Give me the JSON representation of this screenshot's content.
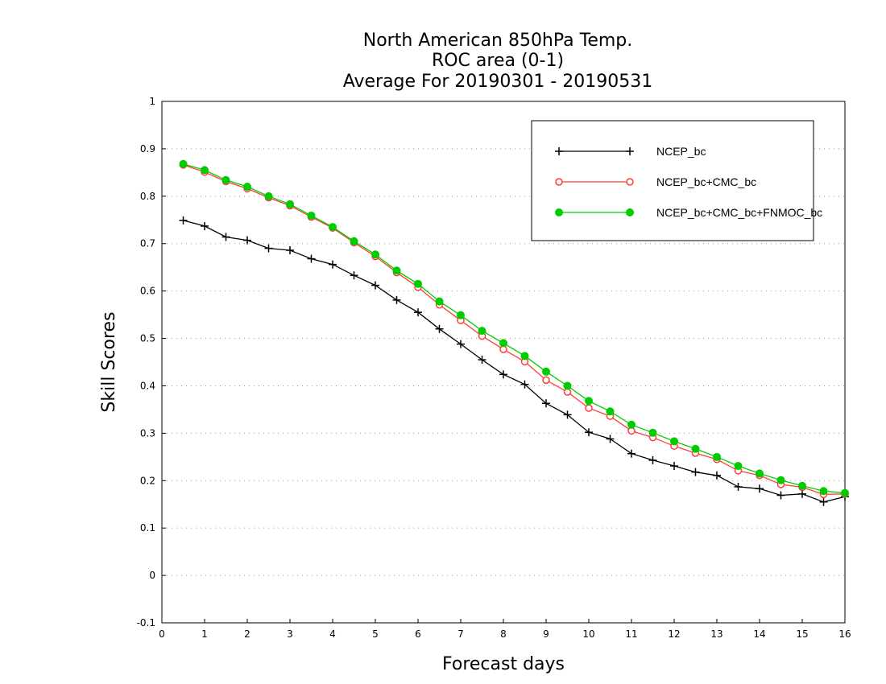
{
  "chart_data": {
    "type": "line",
    "title": [
      "North American 850hPa Temp.",
      "ROC area (0-1)",
      "Average For 20190301 - 20190531"
    ],
    "xlabel": "Forecast days",
    "ylabel": "Skill Scores",
    "xlim": [
      0,
      16
    ],
    "ylim": [
      -0.1,
      1
    ],
    "xticks": [
      0,
      1,
      2,
      3,
      4,
      5,
      6,
      7,
      8,
      9,
      10,
      11,
      12,
      13,
      14,
      15,
      16
    ],
    "yticks": [
      -0.1,
      0,
      0.1,
      0.2,
      0.3,
      0.4,
      0.5,
      0.6,
      0.7,
      0.8,
      0.9,
      1
    ],
    "ytick_labels": [
      "-0.1",
      "0",
      "0.1",
      "0.2",
      "0.3",
      "0.4",
      "0.5",
      "0.6",
      "0.7",
      "0.8",
      "0.9",
      "1"
    ],
    "grid": "horizontal-dotted",
    "legend_position": "top-right",
    "x": [
      0.5,
      1,
      1.5,
      2,
      2.5,
      3,
      3.5,
      4,
      4.5,
      5,
      5.5,
      6,
      6.5,
      7,
      7.5,
      8,
      8.5,
      9,
      9.5,
      10,
      10.5,
      11,
      11.5,
      12,
      12.5,
      13,
      13.5,
      14,
      14.5,
      15,
      15.5,
      16
    ],
    "series": [
      {
        "name": "NCEP_bc",
        "color": "#000000",
        "marker": "plus",
        "values": [
          0.749,
          0.737,
          0.714,
          0.707,
          0.69,
          0.686,
          0.668,
          0.656,
          0.633,
          0.612,
          0.581,
          0.555,
          0.52,
          0.488,
          0.455,
          0.424,
          0.403,
          0.363,
          0.339,
          0.302,
          0.288,
          0.257,
          0.243,
          0.231,
          0.218,
          0.211,
          0.187,
          0.183,
          0.169,
          0.172,
          0.155,
          0.166
        ]
      },
      {
        "name": "NCEP_bc+CMC_bc",
        "color": "#ff3b3b",
        "marker": "open-circle",
        "values": [
          0.866,
          0.851,
          0.831,
          0.816,
          0.797,
          0.78,
          0.756,
          0.733,
          0.702,
          0.673,
          0.639,
          0.608,
          0.571,
          0.538,
          0.505,
          0.477,
          0.451,
          0.412,
          0.387,
          0.353,
          0.336,
          0.305,
          0.291,
          0.273,
          0.258,
          0.245,
          0.221,
          0.211,
          0.192,
          0.186,
          0.171,
          0.172
        ]
      },
      {
        "name": "NCEP_bc+CMC_bc+FNMOC_bc",
        "color": "#00cc00",
        "marker": "filled-circle",
        "values": [
          0.868,
          0.855,
          0.834,
          0.82,
          0.8,
          0.783,
          0.759,
          0.735,
          0.705,
          0.677,
          0.643,
          0.615,
          0.578,
          0.549,
          0.516,
          0.49,
          0.463,
          0.43,
          0.4,
          0.368,
          0.346,
          0.318,
          0.301,
          0.283,
          0.267,
          0.25,
          0.231,
          0.215,
          0.201,
          0.189,
          0.178,
          0.174
        ]
      }
    ]
  }
}
